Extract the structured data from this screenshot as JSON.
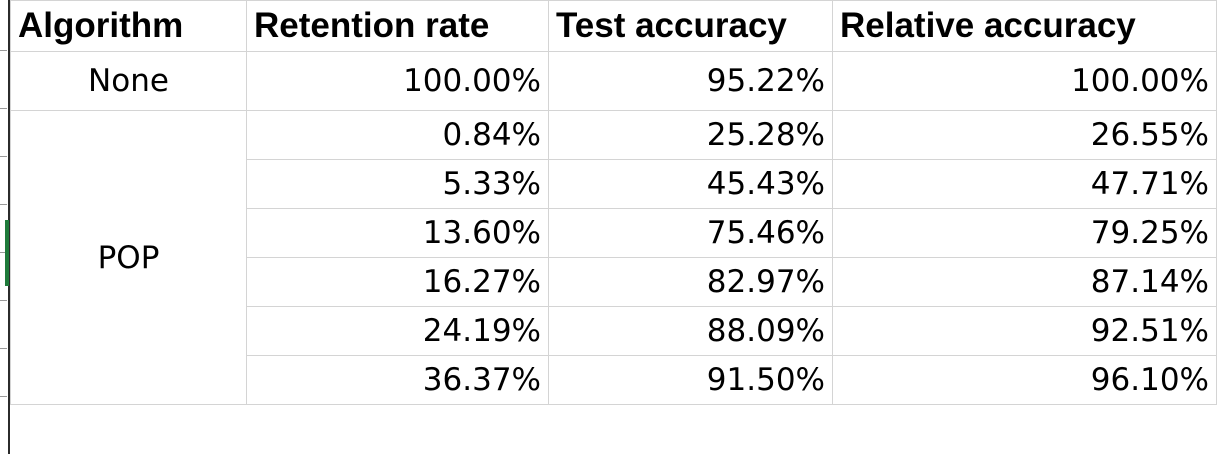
{
  "table": {
    "headers": [
      "Algorithm",
      "Retention rate",
      "Test accuracy",
      "Relative accuracy"
    ],
    "groups": [
      {
        "algorithm": "None",
        "rows": [
          {
            "retention_rate": "100.00%",
            "test_accuracy": "95.22%",
            "relative_accuracy": "100.00%"
          }
        ]
      },
      {
        "algorithm": "POP",
        "rows": [
          {
            "retention_rate": "0.84%",
            "test_accuracy": "25.28%",
            "relative_accuracy": "26.55%"
          },
          {
            "retention_rate": "5.33%",
            "test_accuracy": "45.43%",
            "relative_accuracy": "47.71%"
          },
          {
            "retention_rate": "13.60%",
            "test_accuracy": "75.46%",
            "relative_accuracy": "79.25%"
          },
          {
            "retention_rate": "16.27%",
            "test_accuracy": "82.97%",
            "relative_accuracy": "87.14%"
          },
          {
            "retention_rate": "24.19%",
            "test_accuracy": "88.09%",
            "relative_accuracy": "92.51%"
          },
          {
            "retention_rate": "36.37%",
            "test_accuracy": "91.50%",
            "relative_accuracy": "96.10%"
          }
        ]
      }
    ]
  },
  "colors": {
    "grid": "#d4d4d4",
    "gutter_border": "#2b2b2b",
    "selected_row_marker": "#1e7a3a"
  }
}
